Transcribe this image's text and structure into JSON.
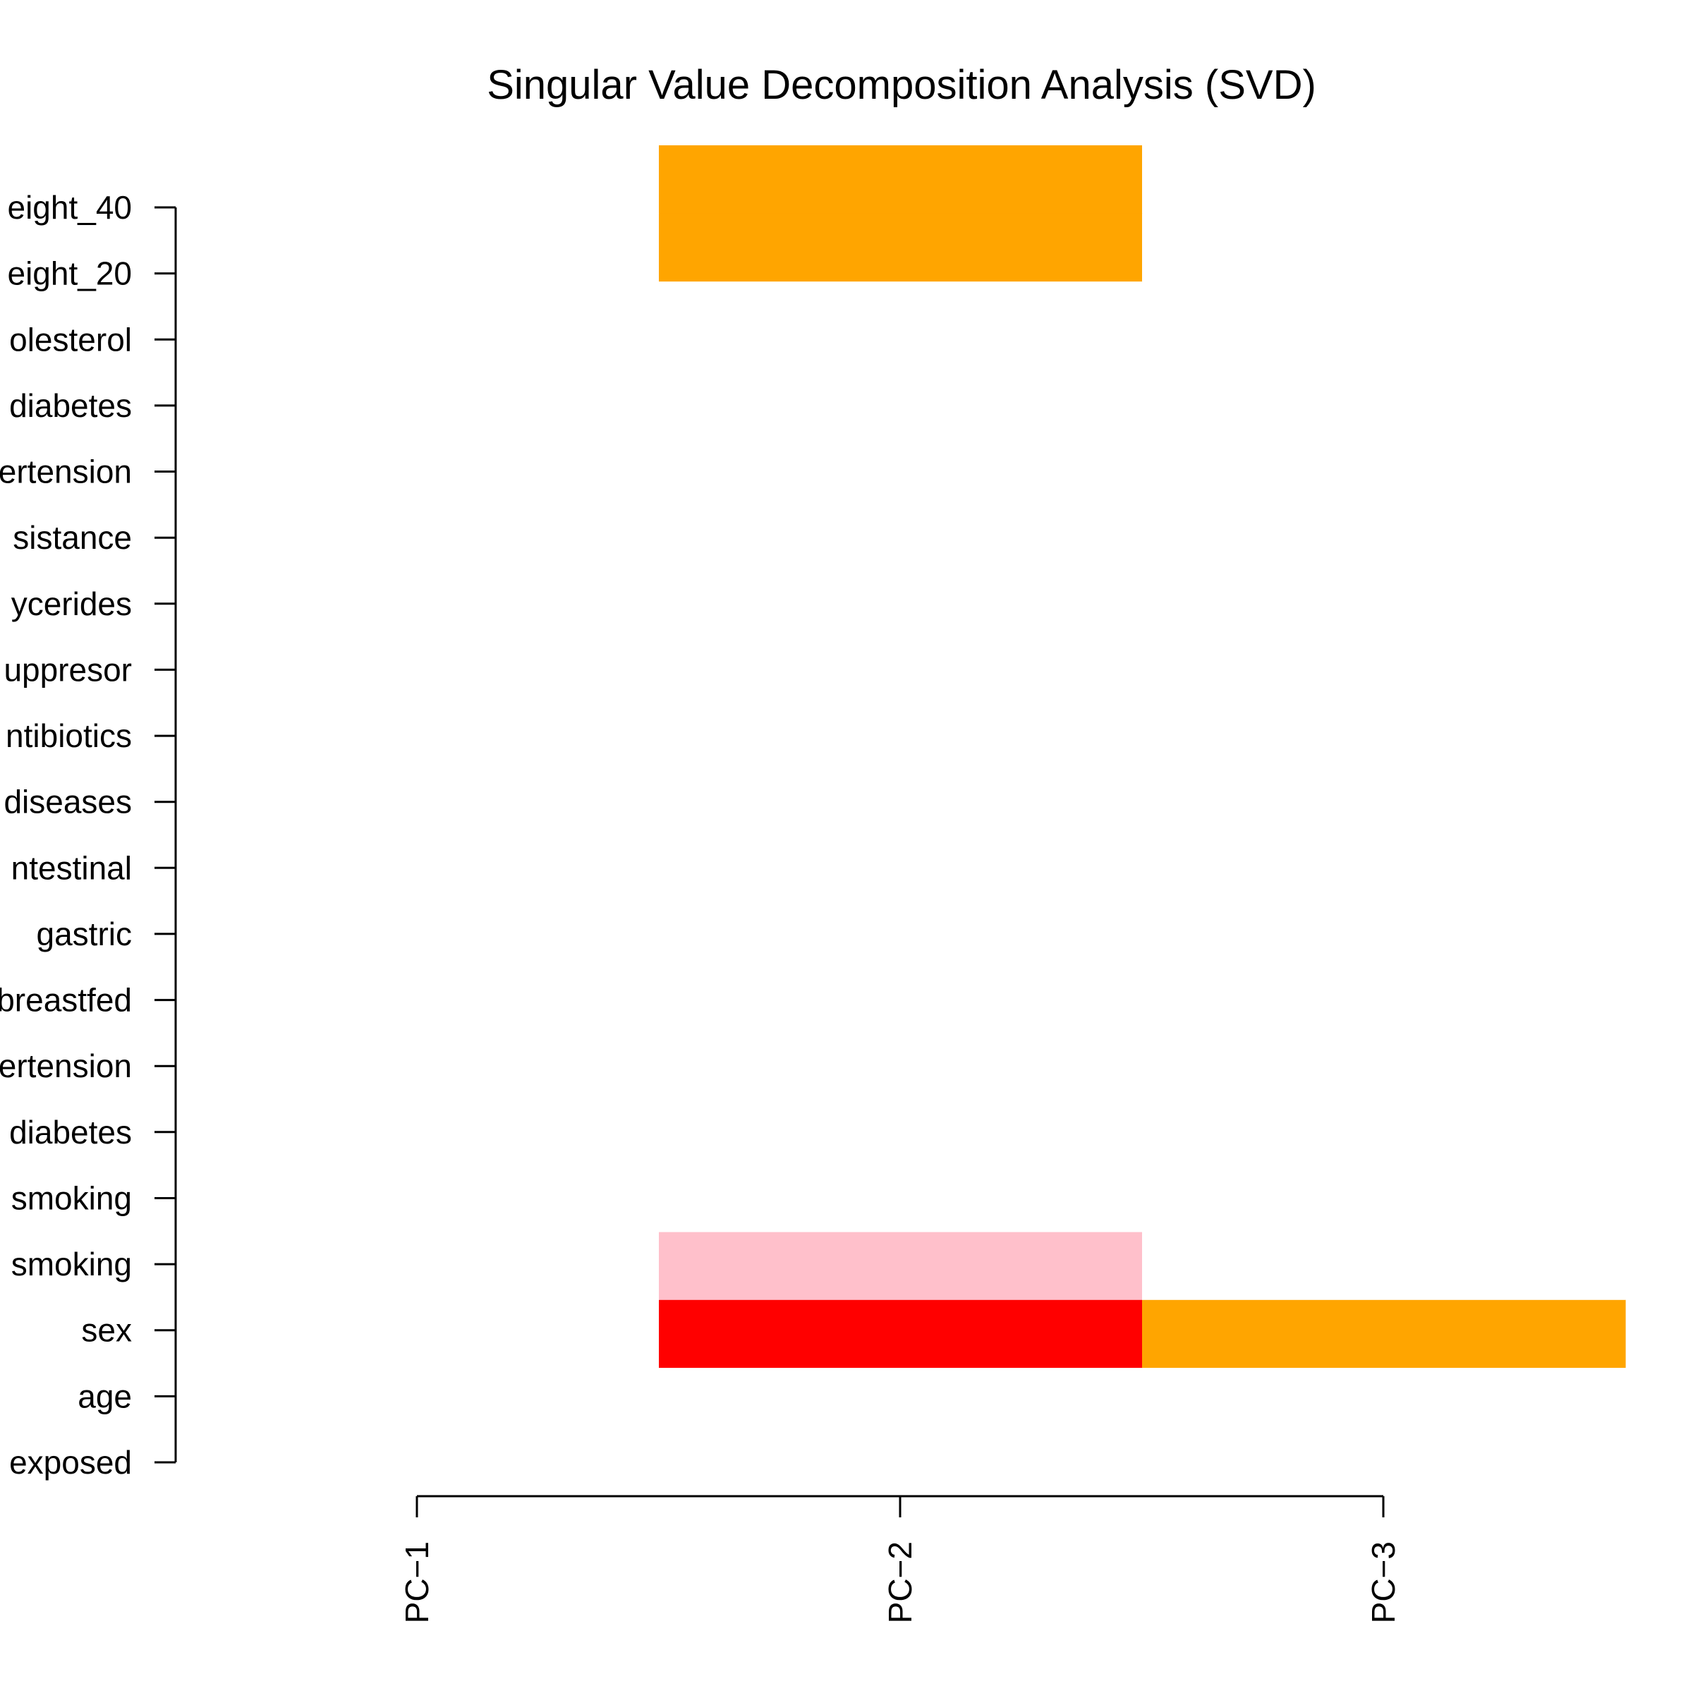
{
  "chart_data": {
    "type": "heatmap",
    "title": "Singular Value Decomposition Analysis (SVD)",
    "xlabel": "",
    "ylabel": "",
    "columns": [
      "PC−1",
      "PC−2",
      "PC−3"
    ],
    "rows": [
      "exposed",
      "age",
      "sex",
      "smoking",
      "smoking",
      "diabetes",
      "ertension",
      "breastfed",
      "gastric",
      "ntestinal",
      "diseases",
      "ntibiotics",
      "uppresor",
      "ycerides",
      "sistance",
      "ertension",
      "diabetes",
      "olesterol",
      "eight_20",
      "eight_40"
    ],
    "colors": {
      "white": "#FFFFFF",
      "pink": "#FFC0CB",
      "red": "#FF0000",
      "orange": "#FFA500"
    },
    "cells": [
      [
        "white",
        "white",
        "white"
      ],
      [
        "white",
        "white",
        "white"
      ],
      [
        "white",
        "red",
        "orange"
      ],
      [
        "white",
        "pink",
        "white"
      ],
      [
        "white",
        "white",
        "white"
      ],
      [
        "white",
        "white",
        "white"
      ],
      [
        "white",
        "white",
        "white"
      ],
      [
        "white",
        "white",
        "white"
      ],
      [
        "white",
        "white",
        "white"
      ],
      [
        "white",
        "white",
        "white"
      ],
      [
        "white",
        "white",
        "white"
      ],
      [
        "white",
        "white",
        "white"
      ],
      [
        "white",
        "white",
        "white"
      ],
      [
        "white",
        "white",
        "white"
      ],
      [
        "white",
        "white",
        "white"
      ],
      [
        "white",
        "white",
        "white"
      ],
      [
        "white",
        "white",
        "white"
      ],
      [
        "white",
        "white",
        "white"
      ],
      [
        "white",
        "orange",
        "white"
      ],
      [
        "white",
        "orange",
        "white"
      ]
    ]
  }
}
